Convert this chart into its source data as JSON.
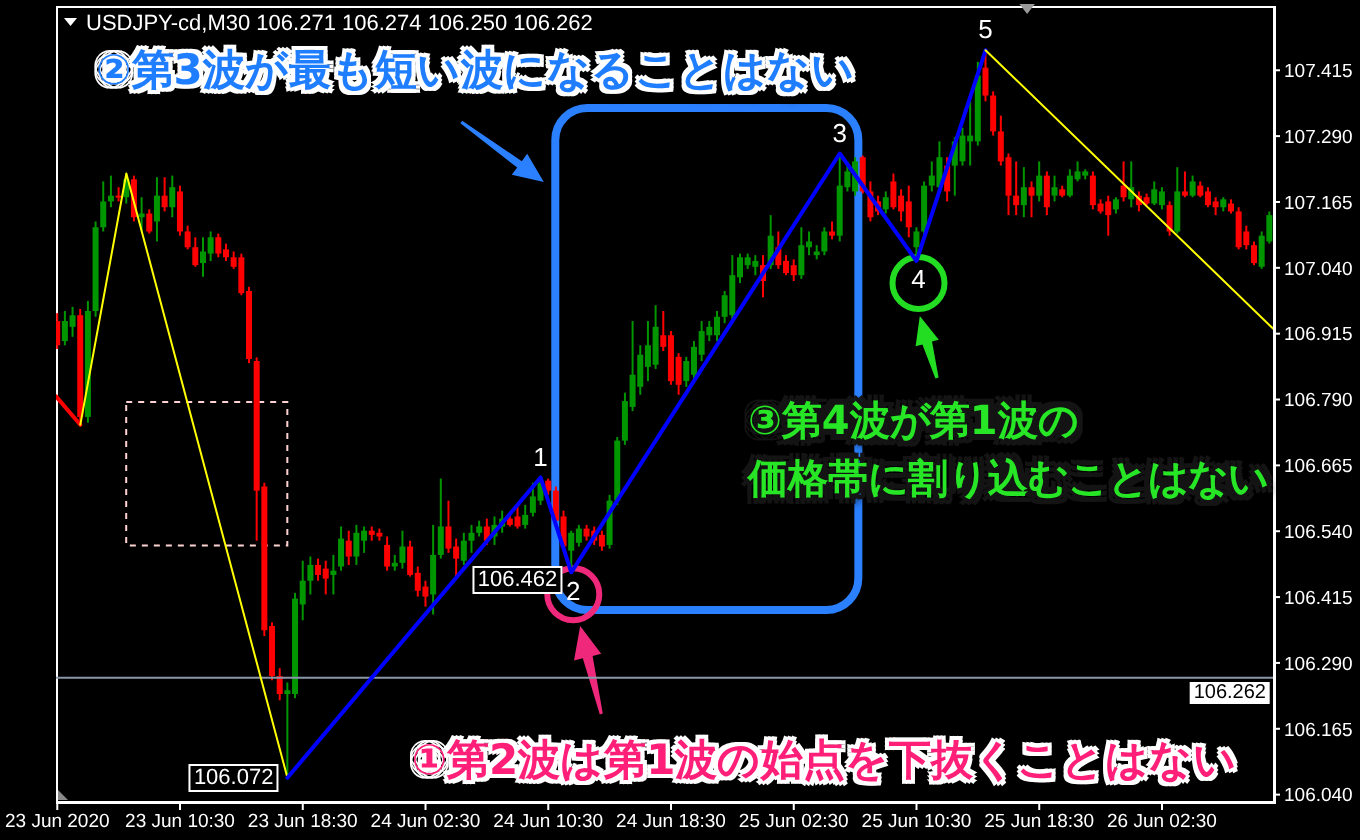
{
  "chart_data": {
    "type": "candlestick",
    "title": "USDJPY-cd,M30 106.271 106.274 106.250 106.262",
    "x": [
      "2020-06-23T02:30",
      "2020-06-23T03:00",
      "2020-06-23T03:30",
      "2020-06-23T04:00",
      "2020-06-23T04:30",
      "2020-06-23T05:00",
      "2020-06-23T05:30",
      "2020-06-23T06:00",
      "2020-06-23T06:30",
      "2020-06-23T07:00",
      "2020-06-23T07:30",
      "2020-06-23T08:00",
      "2020-06-23T08:30",
      "2020-06-23T09:00",
      "2020-06-23T09:30",
      "2020-06-23T10:00",
      "2020-06-23T10:30",
      "2020-06-23T11:00",
      "2020-06-23T11:30",
      "2020-06-23T12:00",
      "2020-06-23T12:30",
      "2020-06-23T13:00",
      "2020-06-23T13:30",
      "2020-06-23T14:00",
      "2020-06-23T14:30",
      "2020-06-23T15:00",
      "2020-06-23T15:30",
      "2020-06-23T16:00",
      "2020-06-23T16:30",
      "2020-06-23T17:00",
      "2020-06-23T17:30",
      "2020-06-23T18:00",
      "2020-06-23T18:30",
      "2020-06-23T19:00",
      "2020-06-23T19:30",
      "2020-06-23T20:00",
      "2020-06-23T20:30",
      "2020-06-23T21:00",
      "2020-06-23T21:30",
      "2020-06-23T22:00",
      "2020-06-23T22:30",
      "2020-06-23T23:00",
      "2020-06-23T23:30",
      "2020-06-24T00:00",
      "2020-06-24T00:30",
      "2020-06-24T01:00",
      "2020-06-24T01:30",
      "2020-06-24T02:00",
      "2020-06-24T02:30",
      "2020-06-24T03:00",
      "2020-06-24T03:30",
      "2020-06-24T04:00",
      "2020-06-24T04:30",
      "2020-06-24T05:00",
      "2020-06-24T05:30",
      "2020-06-24T06:00",
      "2020-06-24T06:30",
      "2020-06-24T07:00",
      "2020-06-24T07:30",
      "2020-06-24T08:00",
      "2020-06-24T08:30",
      "2020-06-24T09:00",
      "2020-06-24T09:30",
      "2020-06-24T10:00",
      "2020-06-24T10:30",
      "2020-06-24T11:00",
      "2020-06-24T11:30",
      "2020-06-24T12:00",
      "2020-06-24T12:30",
      "2020-06-24T13:00",
      "2020-06-24T13:30",
      "2020-06-24T14:00",
      "2020-06-24T14:30",
      "2020-06-24T15:00",
      "2020-06-24T15:30",
      "2020-06-24T16:00",
      "2020-06-24T16:30",
      "2020-06-24T17:00",
      "2020-06-24T17:30",
      "2020-06-24T18:00",
      "2020-06-24T18:30",
      "2020-06-24T19:00",
      "2020-06-24T19:30",
      "2020-06-24T20:00",
      "2020-06-24T20:30",
      "2020-06-24T21:00",
      "2020-06-24T21:30",
      "2020-06-24T22:00",
      "2020-06-24T22:30",
      "2020-06-24T23:00",
      "2020-06-24T23:30",
      "2020-06-25T00:00",
      "2020-06-25T00:30",
      "2020-06-25T01:00",
      "2020-06-25T01:30",
      "2020-06-25T02:00",
      "2020-06-25T02:30",
      "2020-06-25T03:00",
      "2020-06-25T03:30",
      "2020-06-25T04:00",
      "2020-06-25T04:30",
      "2020-06-25T05:00",
      "2020-06-25T05:30",
      "2020-06-25T06:00",
      "2020-06-25T06:30",
      "2020-06-25T07:00",
      "2020-06-25T07:30",
      "2020-06-25T08:00",
      "2020-06-25T08:30",
      "2020-06-25T09:00",
      "2020-06-25T09:30",
      "2020-06-25T10:00",
      "2020-06-25T10:30",
      "2020-06-25T11:00",
      "2020-06-25T11:30",
      "2020-06-25T12:00",
      "2020-06-25T12:30",
      "2020-06-25T13:00",
      "2020-06-25T13:30",
      "2020-06-25T14:00",
      "2020-06-25T14:30",
      "2020-06-25T15:00",
      "2020-06-25T15:30",
      "2020-06-25T16:00",
      "2020-06-25T16:30",
      "2020-06-25T17:00",
      "2020-06-25T17:30",
      "2020-06-25T18:00",
      "2020-06-25T18:30",
      "2020-06-25T19:00",
      "2020-06-25T19:30",
      "2020-06-25T20:00",
      "2020-06-25T20:30",
      "2020-06-25T21:00",
      "2020-06-25T21:30",
      "2020-06-25T22:00",
      "2020-06-25T22:30",
      "2020-06-25T23:00",
      "2020-06-25T23:30",
      "2020-06-26T00:00",
      "2020-06-26T00:30",
      "2020-06-26T01:00",
      "2020-06-26T01:30",
      "2020-06-26T02:00",
      "2020-06-26T02:30",
      "2020-06-26T03:00",
      "2020-06-26T03:30",
      "2020-06-26T04:00",
      "2020-06-26T04:30",
      "2020-06-26T05:00",
      "2020-06-26T05:30",
      "2020-06-26T06:00",
      "2020-06-26T06:30",
      "2020-06-26T07:00",
      "2020-06-26T07:30",
      "2020-06-26T08:00",
      "2020-06-26T08:30",
      "2020-06-26T09:00",
      "2020-06-26T09:30"
    ],
    "ohlc": [
      [
        106.939,
        106.954,
        106.886,
        106.893
      ],
      [
        106.901,
        106.958,
        106.893,
        106.939
      ],
      [
        106.928,
        106.966,
        106.909,
        106.95
      ],
      [
        106.95,
        106.962,
        106.742,
        106.757
      ],
      [
        106.757,
        106.977,
        106.746,
        106.958
      ],
      [
        106.958,
        107.128,
        106.947,
        107.117
      ],
      [
        107.117,
        107.204,
        107.109,
        107.166
      ],
      [
        107.166,
        107.215,
        107.155,
        107.177
      ],
      [
        107.177,
        107.193,
        107.166,
        107.174
      ],
      [
        107.174,
        107.219,
        107.162,
        107.208
      ],
      [
        107.208,
        107.215,
        107.128,
        107.136
      ],
      [
        107.136,
        107.174,
        107.109,
        107.143
      ],
      [
        107.143,
        107.151,
        107.105,
        107.109
      ],
      [
        107.128,
        107.212,
        107.09,
        107.177
      ],
      [
        107.177,
        107.212,
        107.147,
        107.155
      ],
      [
        107.155,
        107.215,
        107.136,
        107.193
      ],
      [
        107.185,
        107.196,
        107.101,
        107.109
      ],
      [
        107.109,
        107.12,
        107.075,
        107.079
      ],
      [
        107.079,
        107.098,
        107.042,
        107.045
      ],
      [
        107.049,
        107.098,
        107.023,
        107.071
      ],
      [
        107.067,
        107.109,
        107.053,
        107.098
      ],
      [
        107.098,
        107.105,
        107.06,
        107.067
      ],
      [
        107.075,
        107.086,
        107.053,
        107.06
      ],
      [
        107.06,
        107.071,
        107.038,
        107.042
      ],
      [
        107.06,
        107.067,
        106.988,
        106.992
      ],
      [
        106.996,
        107.004,
        106.859,
        106.867
      ],
      [
        106.863,
        106.87,
        106.522,
        106.617
      ],
      [
        106.625,
        106.632,
        106.341,
        106.352
      ],
      [
        106.36,
        106.367,
        106.257,
        106.265
      ],
      [
        106.265,
        106.28,
        106.219,
        106.231
      ],
      [
        106.231,
        106.253,
        106.072,
        106.238
      ],
      [
        106.231,
        106.423,
        106.223,
        106.412
      ],
      [
        106.401,
        106.484,
        106.371,
        106.446
      ],
      [
        106.446,
        106.492,
        106.42,
        106.476
      ],
      [
        106.476,
        106.488,
        106.446,
        106.457
      ],
      [
        106.469,
        106.484,
        106.42,
        106.45
      ],
      [
        106.457,
        106.495,
        106.42,
        106.465
      ],
      [
        106.473,
        106.549,
        106.465,
        106.526
      ],
      [
        106.522,
        106.541,
        106.476,
        106.492
      ],
      [
        106.492,
        106.552,
        106.476,
        106.537
      ],
      [
        106.522,
        106.549,
        106.499,
        106.541
      ],
      [
        106.541,
        106.549,
        106.522,
        106.533
      ],
      [
        106.537,
        106.545,
        106.522,
        106.53
      ],
      [
        106.514,
        106.53,
        106.465,
        106.473
      ],
      [
        106.473,
        106.495,
        106.465,
        106.48
      ],
      [
        106.48,
        106.541,
        106.469,
        106.511
      ],
      [
        106.511,
        106.522,
        106.454,
        106.457
      ],
      [
        106.461,
        106.473,
        106.416,
        106.427
      ],
      [
        106.435,
        106.446,
        106.397,
        106.416
      ],
      [
        106.42,
        106.552,
        106.382,
        106.495
      ],
      [
        106.495,
        106.64,
        106.488,
        106.549
      ],
      [
        106.549,
        106.598,
        106.499,
        106.507
      ],
      [
        106.511,
        106.526,
        106.454,
        106.488
      ],
      [
        106.484,
        106.537,
        106.476,
        106.522
      ],
      [
        106.522,
        106.552,
        106.499,
        106.537
      ],
      [
        106.537,
        106.56,
        106.53,
        106.549
      ],
      [
        106.549,
        106.564,
        106.514,
        106.522
      ],
      [
        106.53,
        106.568,
        106.514,
        106.552
      ],
      [
        106.549,
        106.579,
        106.537,
        106.564
      ],
      [
        106.564,
        106.575,
        106.549,
        106.552
      ],
      [
        106.568,
        106.587,
        106.545,
        106.549
      ],
      [
        106.552,
        106.59,
        106.545,
        106.571
      ],
      [
        106.575,
        106.632,
        106.568,
        106.606
      ],
      [
        106.598,
        106.642,
        106.59,
        106.632
      ],
      [
        106.636,
        106.64,
        106.609,
        106.617
      ],
      [
        106.617,
        106.625,
        106.552,
        106.56
      ],
      [
        106.568,
        106.579,
        106.503,
        106.511
      ],
      [
        106.503,
        106.541,
        106.462,
        106.537
      ],
      [
        106.518,
        106.552,
        106.511,
        106.545
      ],
      [
        106.545,
        106.552,
        106.522,
        106.53
      ],
      [
        106.541,
        106.549,
        106.514,
        106.522
      ],
      [
        106.533,
        106.541,
        106.503,
        106.511
      ],
      [
        106.514,
        106.609,
        106.507,
        106.598
      ],
      [
        106.598,
        106.719,
        106.59,
        106.712
      ],
      [
        106.712,
        106.803,
        106.704,
        106.787
      ],
      [
        106.776,
        106.939,
        106.768,
        106.837
      ],
      [
        106.814,
        106.893,
        106.799,
        106.875
      ],
      [
        106.852,
        106.939,
        106.825,
        106.893
      ],
      [
        106.856,
        106.969,
        106.848,
        106.928
      ],
      [
        106.912,
        106.958,
        106.882,
        106.89
      ],
      [
        106.912,
        106.92,
        106.818,
        106.825
      ],
      [
        106.871,
        106.878,
        106.799,
        106.818
      ],
      [
        106.825,
        106.871,
        106.814,
        106.863
      ],
      [
        106.837,
        106.901,
        106.829,
        106.89
      ],
      [
        106.875,
        106.939,
        106.863,
        106.92
      ],
      [
        106.912,
        106.939,
        106.901,
        106.928
      ],
      [
        106.912,
        106.958,
        106.901,
        106.947
      ],
      [
        106.947,
        106.996,
        106.935,
        106.988
      ],
      [
        106.95,
        107.064,
        106.939,
        107.026
      ],
      [
        107.022,
        107.067,
        107.011,
        107.06
      ],
      [
        107.045,
        107.067,
        107.038,
        107.06
      ],
      [
        107.042,
        107.064,
        107.026,
        107.053
      ],
      [
        107.045,
        107.064,
        106.984,
        107.015
      ],
      [
        107.045,
        107.14,
        107.038,
        107.101
      ],
      [
        107.079,
        107.109,
        107.038,
        107.045
      ],
      [
        107.053,
        107.064,
        107.026,
        107.03
      ],
      [
        107.045,
        107.056,
        107.015,
        107.026
      ],
      [
        107.026,
        107.117,
        107.019,
        107.083
      ],
      [
        107.079,
        107.109,
        107.064,
        107.09
      ],
      [
        107.064,
        107.083,
        107.056,
        107.071
      ],
      [
        107.071,
        107.117,
        107.064,
        107.109
      ],
      [
        107.109,
        107.128,
        107.094,
        107.101
      ],
      [
        107.101,
        107.257,
        107.09,
        107.196
      ],
      [
        107.193,
        107.242,
        107.185,
        107.223
      ],
      [
        107.185,
        107.25,
        107.177,
        107.242
      ],
      [
        107.25,
        107.253,
        107.181,
        107.185
      ],
      [
        107.185,
        107.204,
        107.128,
        107.136
      ],
      [
        107.166,
        107.177,
        107.14,
        107.147
      ],
      [
        107.151,
        107.185,
        107.143,
        107.174
      ],
      [
        107.204,
        107.219,
        107.151,
        107.155
      ],
      [
        107.177,
        107.189,
        107.128,
        107.147
      ],
      [
        107.166,
        107.196,
        107.098,
        107.117
      ],
      [
        107.079,
        107.117,
        107.053,
        107.109
      ],
      [
        107.109,
        107.204,
        107.101,
        107.196
      ],
      [
        107.196,
        107.242,
        107.185,
        107.215
      ],
      [
        107.193,
        107.28,
        107.185,
        107.25
      ],
      [
        107.234,
        107.25,
        107.166,
        107.185
      ],
      [
        107.234,
        107.288,
        107.177,
        107.28
      ],
      [
        107.242,
        107.306,
        107.234,
        107.291
      ],
      [
        107.28,
        107.356,
        107.234,
        107.291
      ],
      [
        107.28,
        107.431,
        107.272,
        107.405
      ],
      [
        107.42,
        107.453,
        107.356,
        107.367
      ],
      [
        107.367,
        107.375,
        107.291,
        107.299
      ],
      [
        107.299,
        107.329,
        107.234,
        107.242
      ],
      [
        107.25,
        107.257,
        107.14,
        107.177
      ],
      [
        107.177,
        107.242,
        107.14,
        107.159
      ],
      [
        107.159,
        107.231,
        107.136,
        107.193
      ],
      [
        107.193,
        107.204,
        107.136,
        107.177
      ],
      [
        107.177,
        107.242,
        107.166,
        107.215
      ],
      [
        107.215,
        107.223,
        107.14,
        107.155
      ],
      [
        107.177,
        107.215,
        107.166,
        107.193
      ],
      [
        107.189,
        107.196,
        107.174,
        107.177
      ],
      [
        107.177,
        107.227,
        107.174,
        107.215
      ],
      [
        107.208,
        107.242,
        107.204,
        107.223
      ],
      [
        107.215,
        107.227,
        107.208,
        107.223
      ],
      [
        107.215,
        107.223,
        107.151,
        107.159
      ],
      [
        107.162,
        107.17,
        107.143,
        107.147
      ],
      [
        107.166,
        107.177,
        107.101,
        107.14
      ],
      [
        107.151,
        107.174,
        107.143,
        107.17
      ],
      [
        107.196,
        107.242,
        107.166,
        107.174
      ],
      [
        107.17,
        107.242,
        107.155,
        107.193
      ],
      [
        107.177,
        107.185,
        107.147,
        107.159
      ],
      [
        107.174,
        107.181,
        107.159,
        107.162
      ],
      [
        107.162,
        107.204,
        107.159,
        107.189
      ],
      [
        107.159,
        107.193,
        107.151,
        107.185
      ],
      [
        107.159,
        107.166,
        107.101,
        107.109
      ],
      [
        107.109,
        107.231,
        107.105,
        107.185
      ],
      [
        107.185,
        107.223,
        107.174,
        107.177
      ],
      [
        107.177,
        107.215,
        107.174,
        107.204
      ],
      [
        107.196,
        107.204,
        107.174,
        107.177
      ],
      [
        107.185,
        107.193,
        107.155,
        107.159
      ],
      [
        107.166,
        107.174,
        107.14,
        107.155
      ],
      [
        107.155,
        107.174,
        107.147,
        107.17
      ],
      [
        107.162,
        107.17,
        107.143,
        107.147
      ],
      [
        107.147,
        107.155,
        107.075,
        107.079
      ],
      [
        107.109,
        107.12,
        107.075,
        107.083
      ],
      [
        107.083,
        107.09,
        107.045,
        107.049
      ],
      [
        107.042,
        107.109,
        107.038,
        107.101
      ],
      [
        107.09,
        107.147,
        107.086,
        107.14
      ]
    ],
    "colors": [
      "#ff0000",
      "#009600",
      "#009600",
      "#ff0000",
      "#009600",
      "#009600",
      "#009600",
      "#009600",
      "#ff0000",
      "#009600",
      "#ff0000",
      "#009600",
      "#ff0000",
      "#009600",
      "#ff0000",
      "#009600",
      "#ff0000",
      "#ff0000",
      "#ff0000",
      "#009600",
      "#009600",
      "#ff0000",
      "#ff0000",
      "#ff0000",
      "#ff0000",
      "#ff0000",
      "#ff0000",
      "#ff0000",
      "#ff0000",
      "#ff0000",
      "#009600",
      "#009600",
      "#009600",
      "#009600",
      "#ff0000",
      "#ff0000",
      "#009600",
      "#009600",
      "#ff0000",
      "#009600",
      "#009600",
      "#ff0000",
      "#ff0000",
      "#ff0000",
      "#009600",
      "#009600",
      "#ff0000",
      "#ff0000",
      "#ff0000",
      "#009600",
      "#009600",
      "#ff0000",
      "#ff0000",
      "#009600",
      "#009600",
      "#009600",
      "#ff0000",
      "#009600",
      "#009600",
      "#ff0000",
      "#ff0000",
      "#009600",
      "#009600",
      "#009600",
      "#ff0000",
      "#ff0000",
      "#ff0000",
      "#009600",
      "#009600",
      "#ff0000",
      "#ff0000",
      "#ff0000",
      "#009600",
      "#009600",
      "#009600",
      "#009600",
      "#009600",
      "#009600",
      "#009600",
      "#ff0000",
      "#ff0000",
      "#ff0000",
      "#009600",
      "#009600",
      "#009600",
      "#009600",
      "#009600",
      "#009600",
      "#009600",
      "#009600",
      "#009600",
      "#009600",
      "#ff0000",
      "#009600",
      "#ff0000",
      "#ff0000",
      "#ff0000",
      "#009600",
      "#009600",
      "#009600",
      "#009600",
      "#ff0000",
      "#009600",
      "#009600",
      "#009600",
      "#ff0000",
      "#ff0000",
      "#ff0000",
      "#009600",
      "#ff0000",
      "#ff0000",
      "#ff0000",
      "#009600",
      "#009600",
      "#009600",
      "#009600",
      "#ff0000",
      "#009600",
      "#009600",
      "#009600",
      "#009600",
      "#ff0000",
      "#ff0000",
      "#ff0000",
      "#ff0000",
      "#ff0000",
      "#009600",
      "#ff0000",
      "#009600",
      "#ff0000",
      "#009600",
      "#ff0000",
      "#009600",
      "#009600",
      "#009600",
      "#ff0000",
      "#ff0000",
      "#ff0000",
      "#009600",
      "#ff0000",
      "#009600",
      "#ff0000",
      "#ff0000",
      "#009600",
      "#009600",
      "#ff0000",
      "#009600",
      "#ff0000",
      "#009600",
      "#ff0000",
      "#ff0000",
      "#ff0000",
      "#009600",
      "#ff0000",
      "#ff0000",
      "#ff0000",
      "#ff0000",
      "#009600",
      "#009600"
    ],
    "series": [
      {
        "type": "line",
        "color": "#ff0000",
        "x": [
          "2020-06-23T02:25",
          "2020-06-23T04:00"
        ],
        "values": [
          106.796,
          106.742
        ]
      },
      {
        "type": "line",
        "color": "#ffff00",
        "x": [
          "2020-06-23T04:00",
          "2020-06-23T07:00",
          "2020-06-23T17:30"
        ],
        "values": [
          106.742,
          107.219,
          106.072
        ]
      },
      {
        "type": "line",
        "color": "#0000ff",
        "x": [
          "2020-06-23T17:30",
          "2020-06-24T10:00",
          "2020-06-24T12:00",
          "2020-06-25T05:30",
          "2020-06-25T10:30",
          "2020-06-25T15:00"
        ],
        "values": [
          106.072,
          106.642,
          106.462,
          107.257,
          107.053,
          107.453
        ]
      },
      {
        "type": "line",
        "color": "#ffff00",
        "x": [
          "2020-06-25T15:00",
          "2020-06-26T09:48"
        ],
        "values": [
          107.453,
          106.923
        ]
      }
    ],
    "xlim": [
      "2020-06-23T02:25",
      "2020-06-26T09:48"
    ],
    "xticks": [
      {
        "value": "2020-06-23T02:30",
        "label": "23 Jun 2020"
      },
      {
        "value": "2020-06-23T10:30",
        "label": "23 Jun 10:30"
      },
      {
        "value": "2020-06-23T18:30",
        "label": "23 Jun 18:30"
      },
      {
        "value": "2020-06-24T02:30",
        "label": "24 Jun 02:30"
      },
      {
        "value": "2020-06-24T10:30",
        "label": "24 Jun 10:30"
      },
      {
        "value": "2020-06-24T18:30",
        "label": "24 Jun 18:30"
      },
      {
        "value": "2020-06-25T02:30",
        "label": "25 Jun 02:30"
      },
      {
        "value": "2020-06-25T10:30",
        "label": "25 Jun 10:30"
      },
      {
        "value": "2020-06-25T18:30",
        "label": "25 Jun 18:30"
      },
      {
        "value": "2020-06-26T02:30",
        "label": "26 Jun 02:30"
      }
    ],
    "ylim": [
      106.026,
      107.537
    ],
    "yticks": [
      {
        "value": 106.04,
        "label": "106.040"
      },
      106.165,
      {
        "value": 106.29,
        "label": "106.290"
      },
      106.415,
      {
        "value": 106.54,
        "label": "106.540"
      },
      106.665,
      {
        "value": 106.79,
        "label": "106.790"
      },
      106.915,
      {
        "value": 107.04,
        "label": "107.040"
      },
      107.165,
      {
        "value": 107.29,
        "label": "107.290"
      },
      107.415
    ],
    "ref_lines": [
      {
        "axis": "y",
        "value": 106.262,
        "label": "106.262",
        "color": "#8a97a8"
      }
    ],
    "annotations": [
      "②第3波が最も短い波になることはない",
      "③第4波が第1波の価格帯に割り込むことはない",
      "①第2波は第1波の始点を下抜くことはない",
      {
        "text": "1",
        "x": "2020-06-24T10:00",
        "y": 106.642
      },
      {
        "text": "2",
        "x": "2020-06-24T12:00",
        "y": 106.462
      },
      {
        "text": "3",
        "x": "2020-06-25T05:30",
        "y": 107.257
      },
      {
        "text": "4",
        "x": "2020-06-25T10:30",
        "y": 107.053
      },
      {
        "text": "5",
        "x": "2020-06-25T15:00",
        "y": 107.453
      },
      {
        "text": "106.072",
        "x": "2020-06-23T17:30",
        "y": 106.072
      },
      {
        "text": "106.462",
        "x": "2020-06-24T12:00",
        "y": 106.462
      }
    ]
  }
}
